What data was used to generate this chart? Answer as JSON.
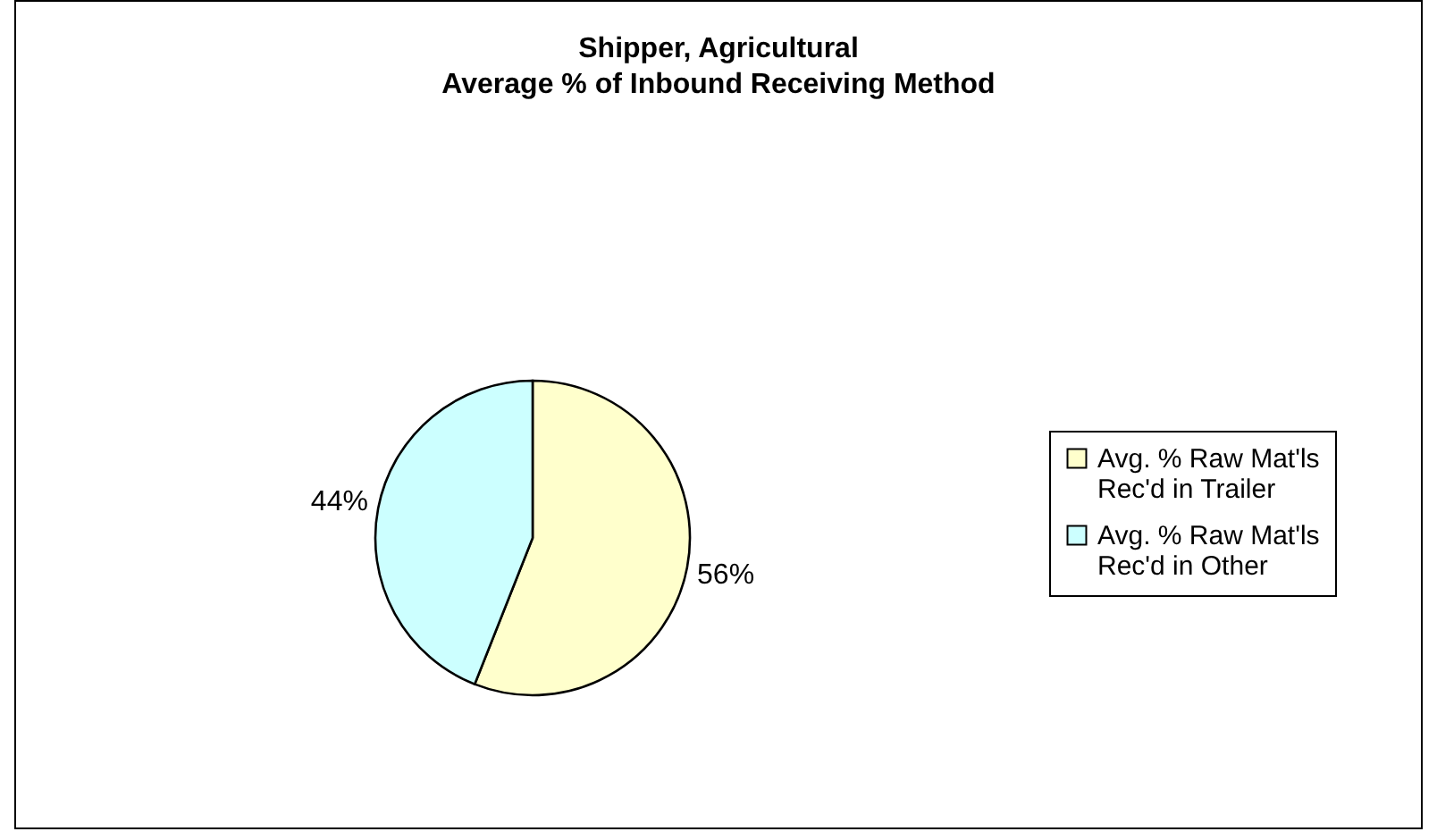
{
  "chart_data": {
    "type": "pie",
    "title": "Shipper, Agricultural",
    "subtitle": "Average % of Inbound Receiving Method",
    "categories": [
      "Avg. % Raw Mat'ls Rec'd in Trailer",
      "Avg. % Raw Mat'ls Rec'd in Other"
    ],
    "values": [
      56,
      44
    ],
    "colors": [
      "#ffffcc",
      "#ccffff"
    ],
    "value_labels": [
      "56%",
      "44%"
    ],
    "legend": "right"
  }
}
